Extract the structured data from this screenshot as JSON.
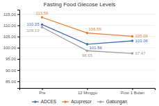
{
  "chart_data": {
    "type": "line",
    "title": "Fasting Food Glecose Levels",
    "categories": [
      "Pre",
      "12 Minggu",
      "Post 1 Bulan"
    ],
    "series": [
      {
        "name": "ADCES",
        "color": "#4472C4",
        "marker": "circle",
        "line_style": "solid",
        "values": [
          110.35,
          101.56,
          103.06
        ]
      },
      {
        "name": "Acupresor",
        "color": "#ED7D31",
        "marker": "circle",
        "line_style": "solid",
        "values": [
          113.59,
          106.59,
          105.09
        ]
      },
      {
        "name": "Gabungan",
        "color": "#A0A0A0",
        "marker": "circle",
        "line_style": "solid",
        "values": [
          109.19,
          98.65,
          97.47
        ]
      }
    ],
    "ylim": [
      82,
      117
    ],
    "yticks": [
      {
        "value": 85,
        "label": "85.00"
      },
      {
        "value": 90,
        "label": "90.00"
      },
      {
        "value": 95,
        "label": "95.00"
      },
      {
        "value": 100,
        "label": "100.00"
      },
      {
        "value": 105,
        "label": "105.00"
      },
      {
        "value": 110,
        "label": "110.00"
      },
      {
        "value": 115,
        "label": "115.00"
      }
    ],
    "grid": true,
    "legend": "bottom",
    "data_labels": true
  }
}
